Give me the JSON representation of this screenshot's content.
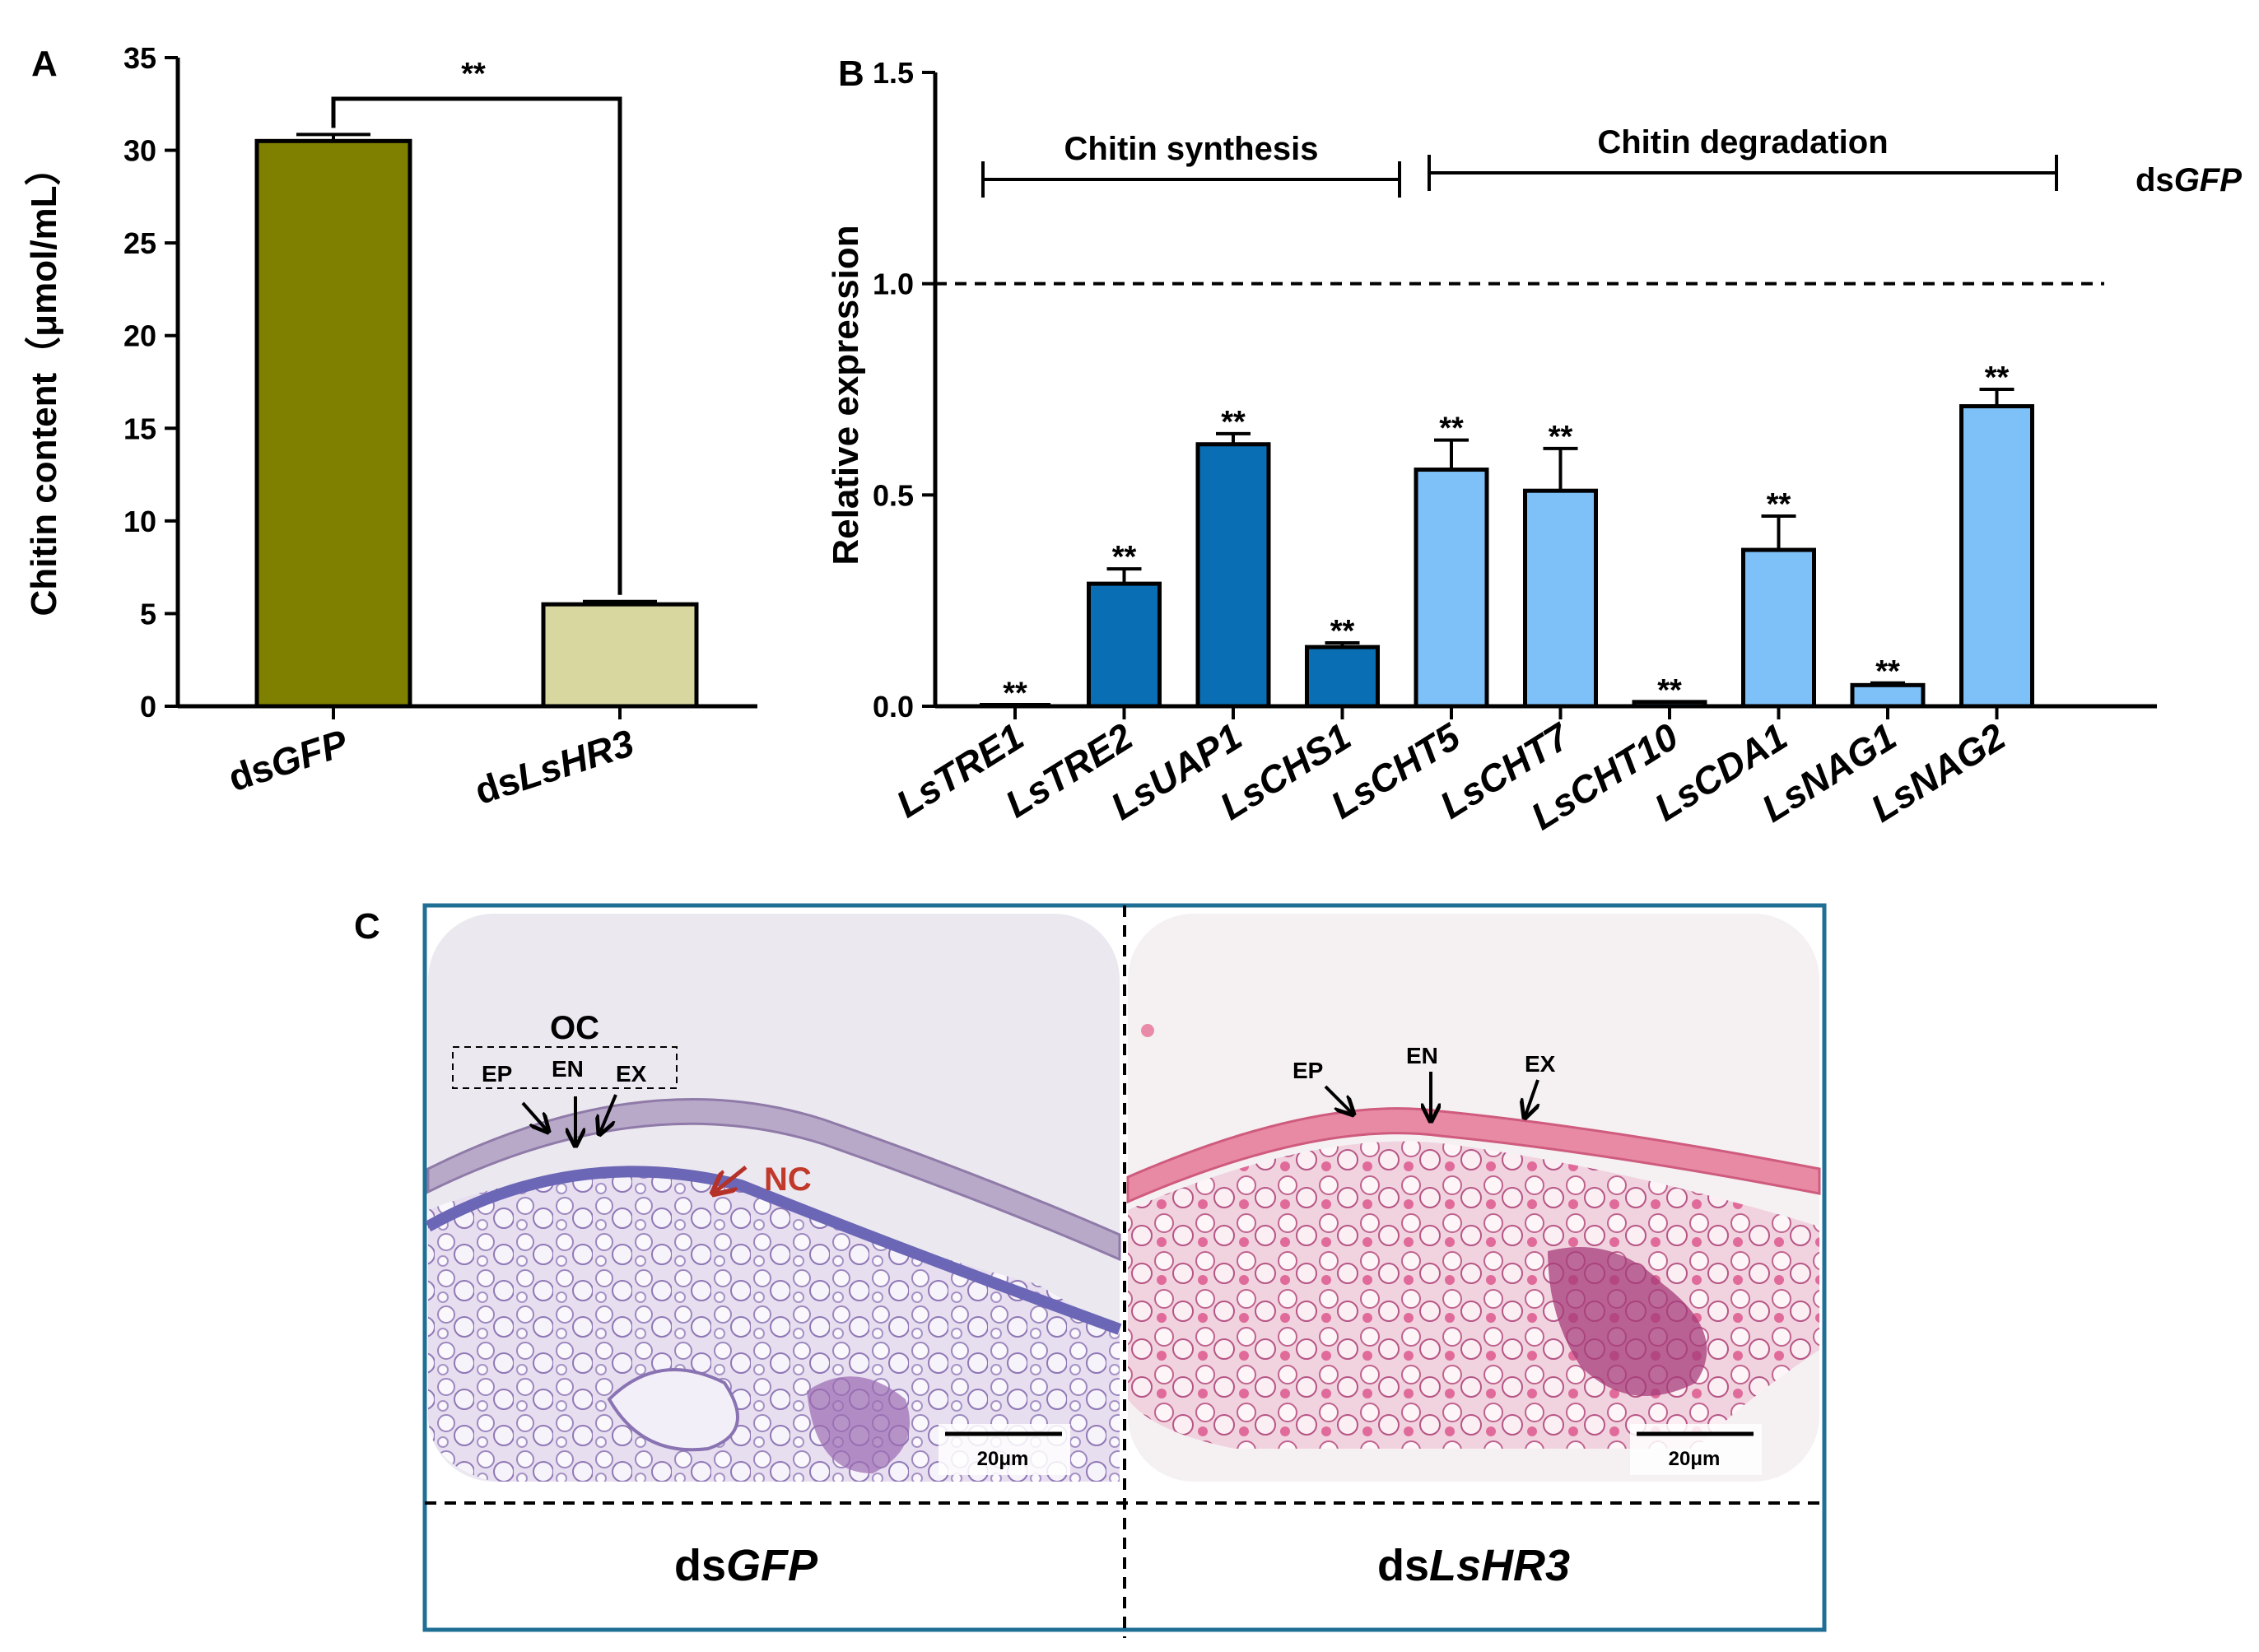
{
  "chart_data": [
    {
      "panel": "A",
      "type": "bar",
      "categories": [
        {
          "prefix": "ds",
          "gene": "GFP"
        },
        {
          "prefix": "ds",
          "gene": "LsHR3"
        }
      ],
      "values": [
        30.5,
        5.5
      ],
      "errors": [
        0.35,
        0.15
      ],
      "colors": [
        "#7f7f00",
        "#d8d7a0"
      ],
      "ylabel": "Chitin content（μmol/mL）",
      "ylim": [
        0,
        35
      ],
      "yticks": [
        0,
        5,
        10,
        15,
        20,
        25,
        30,
        35
      ],
      "significance": "**"
    },
    {
      "panel": "B",
      "type": "bar",
      "categories": [
        "LsTRE1",
        "LsTRE2",
        "LsUAP1",
        "LsCHS1",
        "LsCHT5",
        "LsCHT7",
        "LsCHT10",
        "LsCDA1",
        "LsNAG1",
        "LsNAG2"
      ],
      "values": [
        0.003,
        0.29,
        0.62,
        0.14,
        0.56,
        0.51,
        0.01,
        0.37,
        0.05,
        0.71
      ],
      "errors": [
        0.0,
        0.035,
        0.025,
        0.01,
        0.07,
        0.1,
        0.0,
        0.08,
        0.005,
        0.04
      ],
      "significance": [
        "**",
        "**",
        "**",
        "**",
        "**",
        "**",
        "**",
        "**",
        "**",
        "**"
      ],
      "group_colors": {
        "Chitin synthesis": "#0a6eb4",
        "Chitin degradation": "#7ec0f8"
      },
      "groups": [
        {
          "label": "Chitin synthesis",
          "start": 0,
          "end": 3
        },
        {
          "label": "Chitin degradation",
          "start": 4,
          "end": 9
        }
      ],
      "ylabel": "Relative expression",
      "ylim": [
        0,
        1.5
      ],
      "yticks": [
        "0.0",
        "0.5",
        "1.0",
        "1.5"
      ],
      "reference_line": {
        "value": 1.0,
        "label_prefix": "ds",
        "label_gene": "GFP"
      }
    }
  ],
  "panel_c": {
    "letter": "C",
    "left": {
      "labels": {
        "oc": "OC",
        "ep": "EP",
        "en": "EN",
        "ex": "EX",
        "nc": "NC"
      },
      "scale_bar": "20μm",
      "caption_prefix": "ds",
      "caption_gene": "GFP"
    },
    "right": {
      "labels": {
        "ep": "EP",
        "en": "EN",
        "ex": "EX"
      },
      "scale_bar": "20μm",
      "caption_prefix": "ds",
      "caption_gene": "LsHR3"
    }
  },
  "colors": {
    "frame": "#1f6f95",
    "nc_arrow": "#b5322a"
  }
}
